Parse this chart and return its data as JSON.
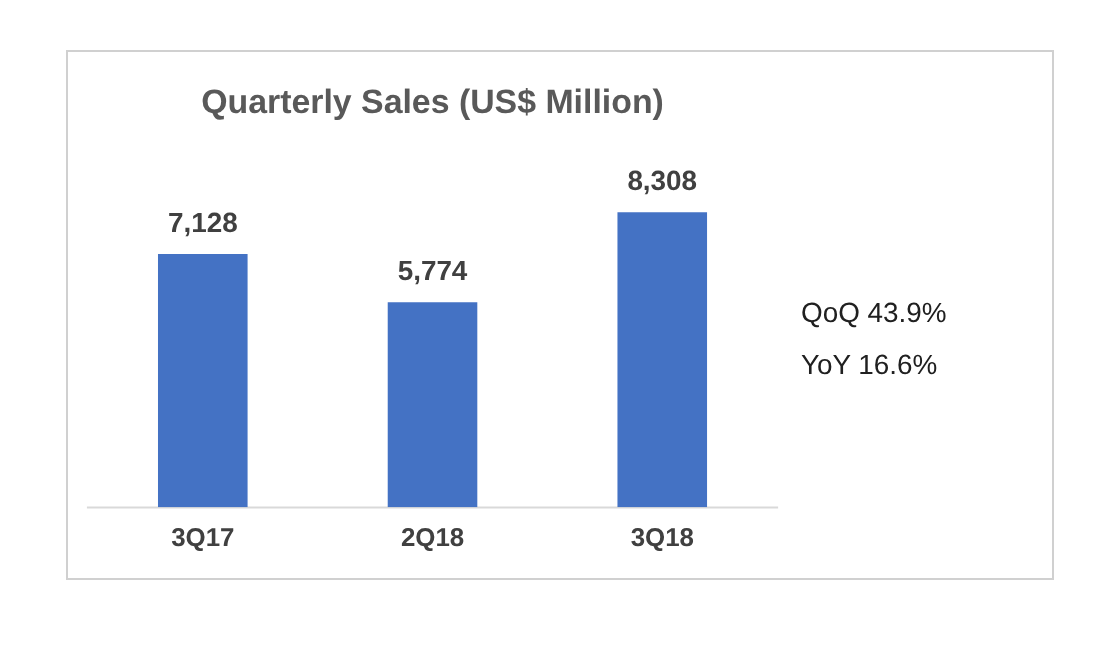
{
  "chart_data": {
    "type": "bar",
    "title": "Quarterly Sales (US$ Million)",
    "categories": [
      "3Q17",
      "2Q18",
      "3Q18"
    ],
    "values": [
      7128,
      5774,
      8308
    ],
    "value_labels": [
      "7,128",
      "5,774",
      "8,308"
    ],
    "color": "#4472c4",
    "grid": false,
    "legend": false,
    "tick_labels": "x",
    "annotations": [
      "QoQ 43.9%",
      "YoY 16.6%"
    ]
  }
}
